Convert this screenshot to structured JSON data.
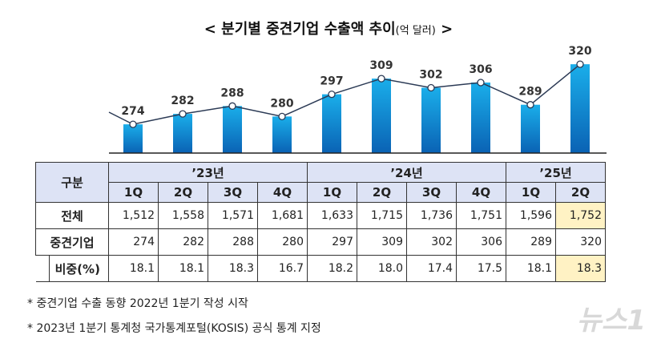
{
  "chart_data": {
    "type": "bar",
    "title": "< 분기별 중견기업 수출액 추이",
    "unit": "(억 달러)",
    "title_end": ">",
    "categories": [
      "'23 1Q",
      "'23 2Q",
      "'23 3Q",
      "'23 4Q",
      "'24 1Q",
      "'24 2Q",
      "'24 3Q",
      "'24 4Q",
      "'25 1Q",
      "'25 2Q"
    ],
    "values": [
      274,
      282,
      288,
      280,
      297,
      309,
      302,
      306,
      289,
      320
    ],
    "overlay": "line",
    "bar_color": "#0a8fd8"
  },
  "table": {
    "corner": "구분",
    "years": [
      {
        "label": "’23년",
        "span": 4
      },
      {
        "label": "’24년",
        "span": 4
      },
      {
        "label": "’25년",
        "span": 2
      }
    ],
    "quarters": [
      "1Q",
      "2Q",
      "3Q",
      "4Q",
      "1Q",
      "2Q",
      "3Q",
      "4Q",
      "1Q",
      "2Q"
    ],
    "rows": [
      {
        "label": "전체",
        "values": [
          "1,512",
          "1,558",
          "1,571",
          "1,681",
          "1,633",
          "1,715",
          "1,736",
          "1,751",
          "1,596",
          "1,752"
        ]
      },
      {
        "label": "중견기업",
        "values": [
          "274",
          "282",
          "288",
          "280",
          "297",
          "309",
          "302",
          "306",
          "289",
          "320"
        ]
      },
      {
        "label": "비중(%)",
        "values": [
          "18.1",
          "18.1",
          "18.3",
          "16.7",
          "18.2",
          "18.0",
          "17.4",
          "17.5",
          "18.1",
          "18.3"
        ]
      }
    ],
    "highlight_color": "#fff2c4"
  },
  "notes": [
    "*  중견기업 수출 동향 2022년 1분기 작성 시작",
    "*  2023년 1분기 통계청 국가통계포털(KOSIS) 공식 통계 지정"
  ],
  "watermark": "뉴스1"
}
